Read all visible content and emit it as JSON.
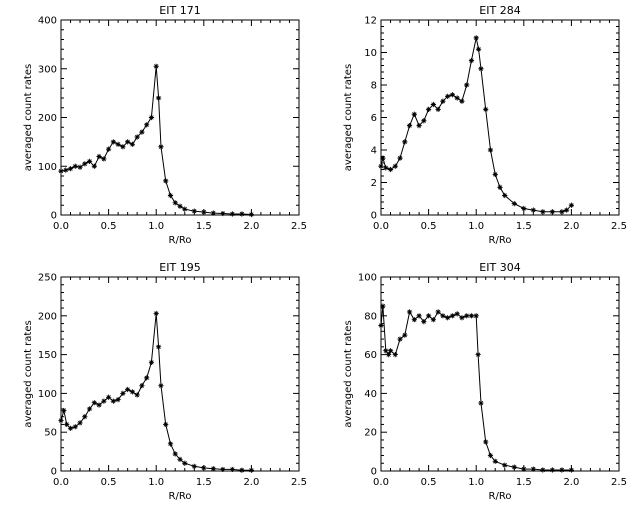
{
  "chart_data": [
    {
      "type": "line",
      "title": "EIT 171",
      "xlabel": "R/Ro",
      "ylabel": "averaged count rates",
      "xlim": [
        0,
        2.5
      ],
      "ylim": [
        0,
        400
      ],
      "xticks": [
        0,
        0.5,
        1,
        1.5,
        2,
        2.5
      ],
      "xtick_labels": [
        "0.0",
        "0.5",
        "1.0",
        "1.5",
        "2.0",
        "2.5"
      ],
      "yticks": [
        0,
        100,
        200,
        300,
        400
      ],
      "ytick_labels": [
        "0",
        "100",
        "200",
        "300",
        "400"
      ],
      "grid": false,
      "marker": "asterisk",
      "x": [
        0.0,
        0.05,
        0.1,
        0.15,
        0.2,
        0.25,
        0.3,
        0.35,
        0.4,
        0.45,
        0.5,
        0.55,
        0.6,
        0.65,
        0.7,
        0.75,
        0.8,
        0.85,
        0.9,
        0.95,
        1.0,
        1.025,
        1.05,
        1.1,
        1.15,
        1.2,
        1.25,
        1.3,
        1.4,
        1.5,
        1.6,
        1.7,
        1.8,
        1.9,
        2.0
      ],
      "y": [
        90,
        92,
        95,
        100,
        98,
        105,
        110,
        100,
        120,
        115,
        135,
        150,
        145,
        140,
        150,
        145,
        160,
        170,
        185,
        200,
        305,
        240,
        140,
        70,
        40,
        25,
        18,
        12,
        8,
        6,
        4,
        3,
        2,
        2,
        1
      ]
    },
    {
      "type": "line",
      "title": "EIT 284",
      "xlabel": "R/Ro",
      "ylabel": "averaged count rates",
      "xlim": [
        0,
        2.5
      ],
      "ylim": [
        0,
        12
      ],
      "xticks": [
        0,
        0.5,
        1,
        1.5,
        2,
        2.5
      ],
      "xtick_labels": [
        "0.0",
        "0.5",
        "1.0",
        "1.5",
        "2.0",
        "2.5"
      ],
      "yticks": [
        0,
        2,
        4,
        6,
        8,
        10,
        12
      ],
      "ytick_labels": [
        "0",
        "2",
        "4",
        "6",
        "8",
        "10",
        "12"
      ],
      "grid": false,
      "marker": "asterisk",
      "x": [
        0.0,
        0.02,
        0.05,
        0.1,
        0.15,
        0.2,
        0.25,
        0.3,
        0.35,
        0.4,
        0.45,
        0.5,
        0.55,
        0.6,
        0.65,
        0.7,
        0.75,
        0.8,
        0.85,
        0.9,
        0.95,
        1.0,
        1.025,
        1.05,
        1.1,
        1.15,
        1.2,
        1.25,
        1.3,
        1.4,
        1.5,
        1.6,
        1.7,
        1.8,
        1.9,
        1.95,
        2.0
      ],
      "y": [
        3.0,
        3.5,
        2.9,
        2.8,
        3.0,
        3.5,
        4.5,
        5.5,
        6.2,
        5.5,
        5.8,
        6.5,
        6.8,
        6.5,
        7.0,
        7.3,
        7.4,
        7.2,
        7.0,
        8.0,
        9.5,
        10.9,
        10.2,
        9.0,
        6.5,
        4.0,
        2.5,
        1.7,
        1.2,
        0.7,
        0.4,
        0.3,
        0.2,
        0.2,
        0.2,
        0.3,
        0.6
      ]
    },
    {
      "type": "line",
      "title": "EIT 195",
      "xlabel": "R/Ro",
      "ylabel": "averaged count rates",
      "xlim": [
        0,
        2.5
      ],
      "ylim": [
        0,
        250
      ],
      "xticks": [
        0,
        0.5,
        1,
        1.5,
        2,
        2.5
      ],
      "xtick_labels": [
        "0.0",
        "0.5",
        "1.0",
        "1.5",
        "2.0",
        "2.5"
      ],
      "yticks": [
        0,
        50,
        100,
        150,
        200,
        250
      ],
      "ytick_labels": [
        "0",
        "50",
        "100",
        "150",
        "200",
        "250"
      ],
      "grid": false,
      "marker": "asterisk",
      "x": [
        0.0,
        0.03,
        0.06,
        0.1,
        0.15,
        0.2,
        0.25,
        0.3,
        0.35,
        0.4,
        0.45,
        0.5,
        0.55,
        0.6,
        0.65,
        0.7,
        0.75,
        0.8,
        0.85,
        0.9,
        0.95,
        1.0,
        1.025,
        1.05,
        1.1,
        1.15,
        1.2,
        1.25,
        1.3,
        1.4,
        1.5,
        1.6,
        1.7,
        1.8,
        1.9,
        2.0
      ],
      "y": [
        65,
        78,
        60,
        55,
        57,
        62,
        70,
        80,
        88,
        85,
        90,
        95,
        90,
        92,
        100,
        105,
        102,
        98,
        110,
        120,
        140,
        203,
        160,
        110,
        60,
        35,
        22,
        15,
        10,
        6,
        4,
        3,
        2,
        2,
        1,
        1
      ]
    },
    {
      "type": "line",
      "title": "EIT 304",
      "xlabel": "R/Ro",
      "ylabel": "averaged count rates",
      "xlim": [
        0,
        2.5
      ],
      "ylim": [
        0,
        100
      ],
      "xticks": [
        0,
        0.5,
        1,
        1.5,
        2,
        2.5
      ],
      "xtick_labels": [
        "0.0",
        "0.5",
        "1.0",
        "1.5",
        "2.0",
        "2.5"
      ],
      "yticks": [
        0,
        20,
        40,
        60,
        80,
        100
      ],
      "ytick_labels": [
        "0",
        "20",
        "40",
        "60",
        "80",
        "100"
      ],
      "grid": false,
      "marker": "asterisk",
      "x": [
        0.0,
        0.02,
        0.05,
        0.08,
        0.1,
        0.15,
        0.2,
        0.25,
        0.3,
        0.35,
        0.4,
        0.45,
        0.5,
        0.55,
        0.6,
        0.65,
        0.7,
        0.75,
        0.8,
        0.85,
        0.9,
        0.95,
        1.0,
        1.02,
        1.05,
        1.1,
        1.15,
        1.2,
        1.3,
        1.4,
        1.5,
        1.6,
        1.7,
        1.8,
        1.9,
        2.0
      ],
      "y": [
        75,
        85,
        62,
        60,
        62,
        60,
        68,
        70,
        82,
        78,
        80,
        77,
        80,
        78,
        82,
        80,
        79,
        80,
        81,
        79,
        80,
        80,
        80,
        60,
        35,
        15,
        8,
        5,
        3,
        2,
        1,
        1,
        0.5,
        0.5,
        0.5,
        0.5
      ]
    }
  ]
}
